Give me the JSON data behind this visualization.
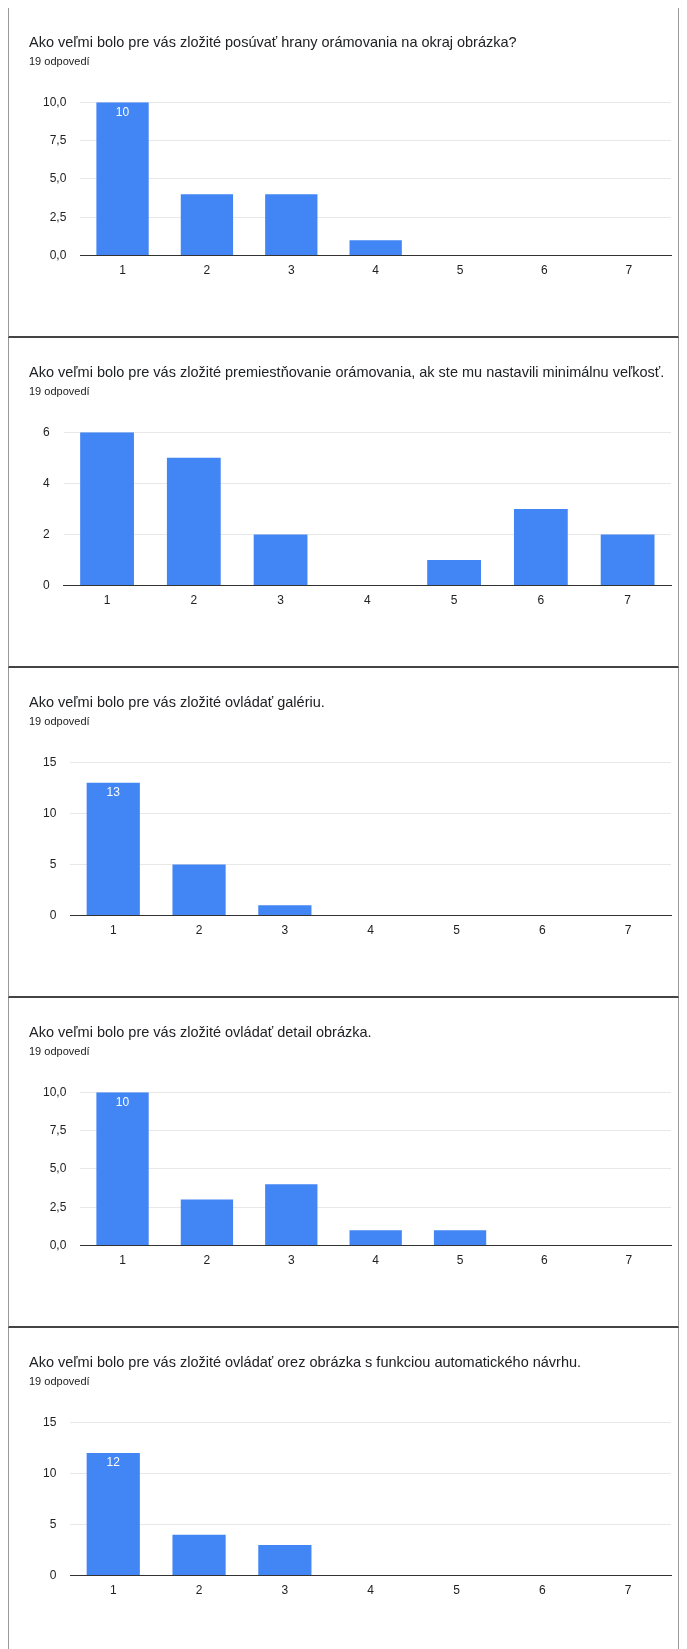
{
  "chart_data": [
    {
      "type": "bar",
      "title": "Ako veľmi bolo pre vás zložité posúvať hrany orámovania na okraj obrázka?",
      "subtitle": "19 odpovedí",
      "categories": [
        "1",
        "2",
        "3",
        "4",
        "5",
        "6",
        "7"
      ],
      "values": [
        10,
        4,
        4,
        1,
        0,
        0,
        0
      ],
      "color": "#4285f4",
      "value_labels": [
        "10",
        null,
        null,
        null,
        null,
        null,
        null
      ],
      "ylim": [
        0,
        10
      ],
      "yticks": [
        {
          "value": 0,
          "label": "0,0"
        },
        {
          "value": 2.5,
          "label": "2,5"
        },
        {
          "value": 5,
          "label": "5,0"
        },
        {
          "value": 7.5,
          "label": "7,5"
        },
        {
          "value": 10,
          "label": "10,0"
        }
      ],
      "grid": "y"
    },
    {
      "type": "bar",
      "title": "Ako veľmi bolo pre vás zložité premiestňovanie orámovania, ak ste mu nastavili minimálnu veľkosť.",
      "subtitle": "19 odpovedí",
      "categories": [
        "1",
        "2",
        "3",
        "4",
        "5",
        "6",
        "7"
      ],
      "values": [
        6,
        5,
        2,
        0,
        1,
        3,
        2
      ],
      "color": "#4285f4",
      "ylim": [
        0,
        6
      ],
      "yticks": [
        0,
        2,
        4,
        6
      ],
      "grid": "y"
    },
    {
      "type": "bar",
      "title": "Ako veľmi bolo pre vás zložité ovládať galériu.",
      "subtitle": "19 odpovedí",
      "categories": [
        "1",
        "2",
        "3",
        "4",
        "5",
        "6",
        "7"
      ],
      "values": [
        13,
        5,
        1,
        0,
        0,
        0,
        0
      ],
      "color": "#4285f4",
      "value_labels": [
        "13",
        null,
        null,
        null,
        null,
        null,
        null
      ],
      "ylim": [
        0,
        15
      ],
      "yticks": [
        0,
        5,
        10,
        15
      ],
      "grid": "y"
    },
    {
      "type": "bar",
      "title": "Ako veľmi bolo pre vás zložité ovládať detail obrázka.",
      "subtitle": "19 odpovedí",
      "categories": [
        "1",
        "2",
        "3",
        "4",
        "5",
        "6",
        "7"
      ],
      "values": [
        10,
        3,
        4,
        1,
        1,
        0,
        0
      ],
      "color": "#4285f4",
      "value_labels": [
        "10",
        null,
        null,
        null,
        null,
        null,
        null
      ],
      "ylim": [
        0,
        10
      ],
      "yticks": [
        {
          "value": 0,
          "label": "0,0"
        },
        {
          "value": 2.5,
          "label": "2,5"
        },
        {
          "value": 5,
          "label": "5,0"
        },
        {
          "value": 7.5,
          "label": "7,5"
        },
        {
          "value": 10,
          "label": "10,0"
        }
      ],
      "grid": "y"
    },
    {
      "type": "bar",
      "title": "Ako veľmi bolo pre vás zložité ovládať orez obrázka s funkciou automatického návrhu.",
      "subtitle": "19 odpovedí",
      "categories": [
        "1",
        "2",
        "3",
        "4",
        "5",
        "6",
        "7"
      ],
      "values": [
        12,
        4,
        3,
        0,
        0,
        0,
        0
      ],
      "color": "#4285f4",
      "value_labels": [
        "12",
        null,
        null,
        null,
        null,
        null,
        null
      ],
      "ylim": [
        0,
        15
      ],
      "yticks": [
        0,
        5,
        10,
        15
      ],
      "grid": "y"
    }
  ]
}
